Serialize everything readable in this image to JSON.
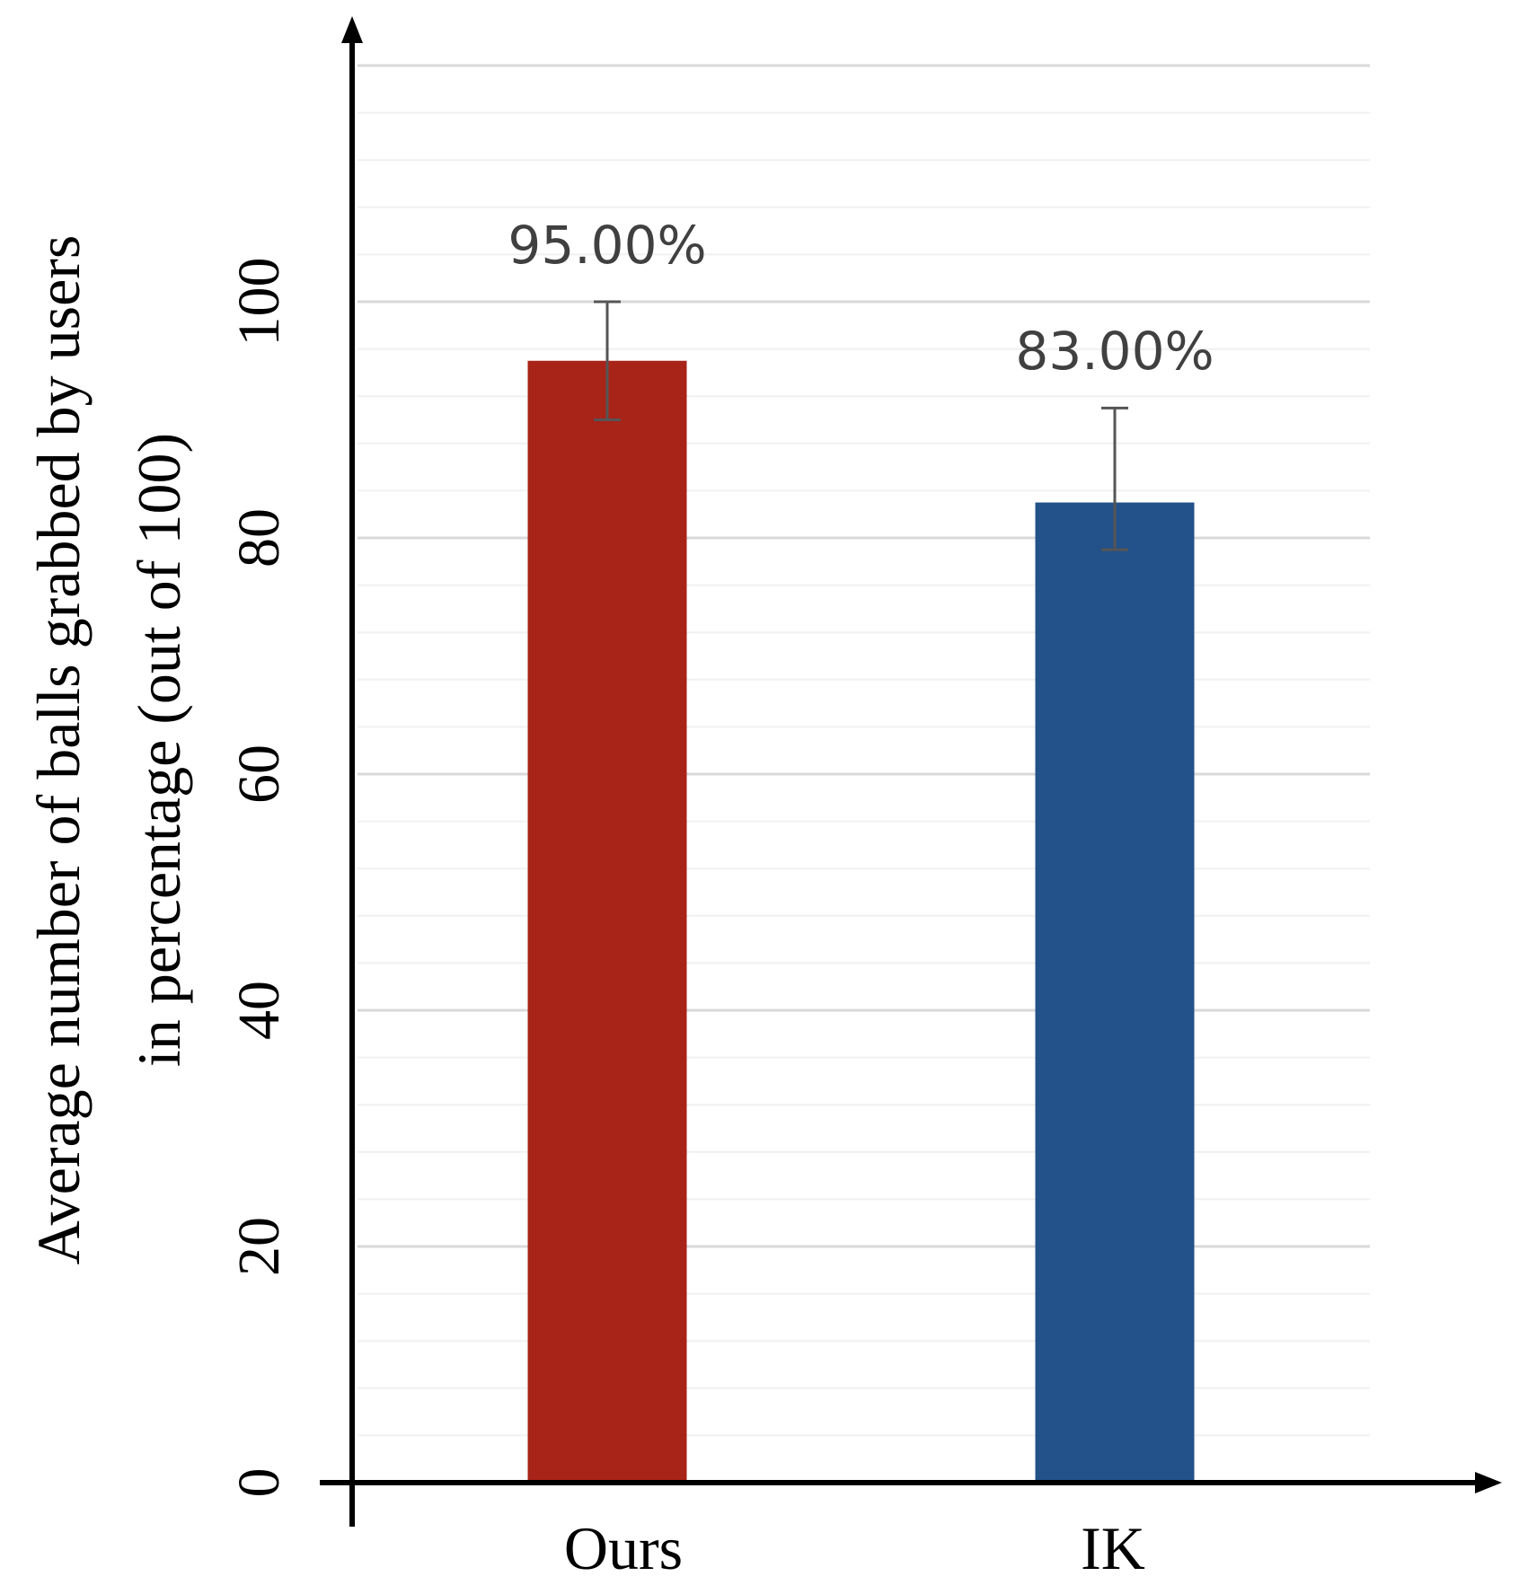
{
  "chart_data": {
    "type": "bar",
    "categories": [
      "Ours",
      "IK"
    ],
    "values": [
      95.0,
      83.0
    ],
    "error_bars": [
      {
        "upper": 100.0,
        "lower": 90.0
      },
      {
        "upper": 91.0,
        "lower": 79.0
      }
    ],
    "data_labels": [
      "95.00%",
      "83.00%"
    ],
    "title": "",
    "xlabel": "",
    "ylabel_lines": [
      "Average number of balls grabbed by users",
      "in percentage (out of 100)"
    ],
    "yticks": [
      "0",
      "20",
      "40",
      "60",
      "80",
      "100"
    ],
    "ylim": [
      0,
      100
    ],
    "grid": true,
    "colors": [
      "#a82318",
      "#235189"
    ]
  }
}
